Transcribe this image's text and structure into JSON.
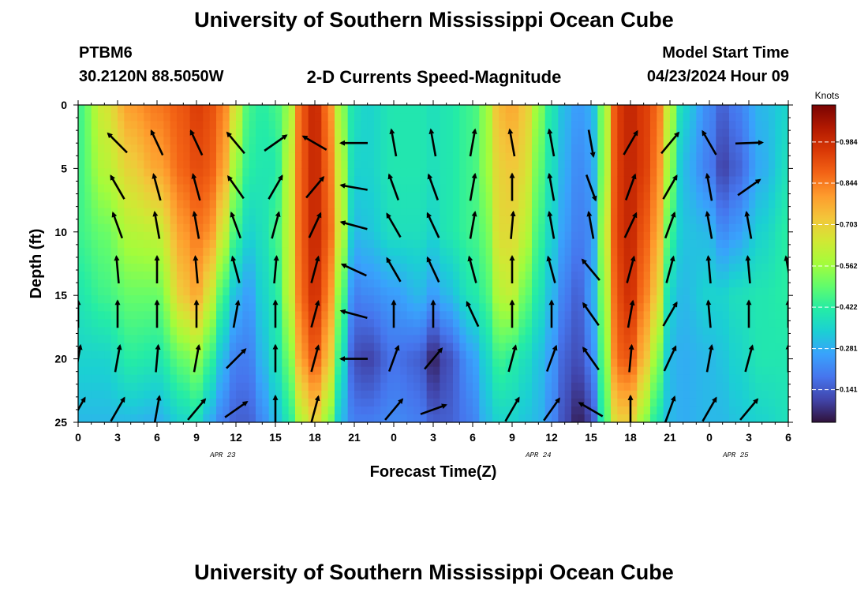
{
  "header": {
    "title": "University of Southern Mississippi Ocean Cube",
    "station": "PTBM6",
    "location": "30.2120N  88.5050W",
    "subtitle": "2-D Currents Speed-Magnitude",
    "model_start_label": "Model Start Time",
    "model_start_value": "04/23/2024 Hour 09"
  },
  "footer": {
    "title": "University of Southern Mississippi Ocean Cube"
  },
  "chart_data": {
    "type": "heatmap",
    "title": "2-D Currents Speed-Magnitude",
    "xlabel": "Forecast Time(Z)",
    "ylabel": "Depth (ft)",
    "x_range_hours": [
      0,
      54
    ],
    "y_range_ft": [
      0,
      25
    ],
    "x_tick_labels": [
      "0",
      "3",
      "6",
      "9",
      "12",
      "15",
      "18",
      "21",
      "0",
      "3",
      "6",
      "9",
      "12",
      "15",
      "18",
      "21",
      "0",
      "3",
      "6"
    ],
    "x_tick_hours": [
      0,
      3,
      6,
      9,
      12,
      15,
      18,
      21,
      24,
      27,
      30,
      33,
      36,
      39,
      42,
      45,
      48,
      51,
      54
    ],
    "y_tick_labels": [
      "0",
      "5",
      "10",
      "15",
      "20",
      "25"
    ],
    "y_tick_values": [
      0,
      5,
      10,
      15,
      20,
      25
    ],
    "date_labels": [
      {
        "text": "APR 23",
        "hour": 11
      },
      {
        "text": "APR 24",
        "hour": 35
      },
      {
        "text": "APR 25",
        "hour": 50
      }
    ],
    "colorbar": {
      "title": "Knots",
      "labels": [
        "0.984",
        "0.844",
        "0.703",
        "0.562",
        "0.422",
        "0.281",
        "0.141"
      ],
      "values": [
        0.984,
        0.844,
        0.703,
        0.562,
        0.422,
        0.281,
        0.141
      ],
      "range": [
        0.03,
        1.11
      ]
    },
    "colorscale": [
      "#30123b",
      "#4145ab",
      "#4675ed",
      "#39a2fc",
      "#1bcfd4",
      "#24eca6",
      "#61fc6c",
      "#a4fc3b",
      "#d1e834",
      "#f3c63a",
      "#fe9b2d",
      "#f36315",
      "#d93806",
      "#b11901",
      "#7a0403"
    ],
    "speed_profiles": [
      {
        "hour": 0,
        "v": [
          0.45,
          0.45,
          0.45,
          0.4,
          0.35,
          0.3
        ]
      },
      {
        "hour": 2,
        "v": [
          0.65,
          0.6,
          0.5,
          0.45,
          0.35,
          0.3
        ]
      },
      {
        "hour": 4,
        "v": [
          0.8,
          0.7,
          0.6,
          0.5,
          0.42,
          0.3
        ]
      },
      {
        "hour": 6,
        "v": [
          0.85,
          0.78,
          0.62,
          0.5,
          0.4,
          0.28
        ]
      },
      {
        "hour": 8,
        "v": [
          0.9,
          0.88,
          0.8,
          0.72,
          0.5,
          0.35
        ]
      },
      {
        "hour": 9,
        "v": [
          0.95,
          0.92,
          0.85,
          0.78,
          0.55,
          0.38
        ]
      },
      {
        "hour": 10,
        "v": [
          0.92,
          0.9,
          0.82,
          0.65,
          0.45,
          0.28
        ]
      },
      {
        "hour": 11,
        "v": [
          0.85,
          0.8,
          0.65,
          0.45,
          0.3,
          0.2
        ]
      },
      {
        "hour": 12,
        "v": [
          0.65,
          0.55,
          0.45,
          0.3,
          0.2,
          0.15
        ]
      },
      {
        "hour": 13,
        "v": [
          0.45,
          0.42,
          0.35,
          0.25,
          0.2,
          0.15
        ]
      },
      {
        "hour": 14,
        "v": [
          0.42,
          0.4,
          0.38,
          0.35,
          0.3,
          0.22
        ]
      },
      {
        "hour": 15,
        "v": [
          0.45,
          0.4,
          0.45,
          0.4,
          0.38,
          0.3
        ]
      },
      {
        "hour": 16,
        "v": [
          0.55,
          0.6,
          0.6,
          0.6,
          0.5,
          0.4
        ]
      },
      {
        "hour": 17,
        "v": [
          0.9,
          0.9,
          0.9,
          0.88,
          0.8,
          0.6
        ]
      },
      {
        "hour": 18,
        "v": [
          1.0,
          1.0,
          1.0,
          0.98,
          0.9,
          0.7
        ]
      },
      {
        "hour": 19,
        "v": [
          0.85,
          0.88,
          0.9,
          0.85,
          0.75,
          0.55
        ]
      },
      {
        "hour": 20,
        "v": [
          0.55,
          0.6,
          0.62,
          0.5,
          0.4,
          0.3
        ]
      },
      {
        "hour": 21,
        "v": [
          0.38,
          0.35,
          0.3,
          0.2,
          0.12,
          0.2
        ]
      },
      {
        "hour": 22,
        "v": [
          0.35,
          0.35,
          0.32,
          0.22,
          0.1,
          0.2
        ]
      },
      {
        "hour": 24,
        "v": [
          0.4,
          0.4,
          0.38,
          0.25,
          0.18,
          0.22
        ]
      },
      {
        "hour": 26,
        "v": [
          0.4,
          0.4,
          0.38,
          0.3,
          0.15,
          0.2
        ]
      },
      {
        "hour": 27,
        "v": [
          0.38,
          0.38,
          0.35,
          0.25,
          0.05,
          0.15
        ]
      },
      {
        "hour": 28,
        "v": [
          0.4,
          0.4,
          0.4,
          0.3,
          0.12,
          0.15
        ]
      },
      {
        "hour": 30,
        "v": [
          0.45,
          0.45,
          0.45,
          0.4,
          0.25,
          0.2
        ]
      },
      {
        "hour": 31,
        "v": [
          0.55,
          0.55,
          0.5,
          0.45,
          0.35,
          0.3
        ]
      },
      {
        "hour": 32,
        "v": [
          0.75,
          0.7,
          0.68,
          0.6,
          0.45,
          0.35
        ]
      },
      {
        "hour": 33,
        "v": [
          0.78,
          0.72,
          0.68,
          0.62,
          0.42,
          0.35
        ]
      },
      {
        "hour": 34,
        "v": [
          0.72,
          0.68,
          0.62,
          0.5,
          0.38,
          0.32
        ]
      },
      {
        "hour": 35,
        "v": [
          0.55,
          0.5,
          0.45,
          0.4,
          0.32,
          0.3
        ]
      },
      {
        "hour": 36,
        "v": [
          0.4,
          0.38,
          0.35,
          0.3,
          0.25,
          0.22
        ]
      },
      {
        "hour": 37,
        "v": [
          0.3,
          0.28,
          0.25,
          0.2,
          0.15,
          0.12
        ]
      },
      {
        "hour": 38,
        "v": [
          0.25,
          0.22,
          0.2,
          0.15,
          0.12,
          0.05
        ]
      },
      {
        "hour": 39,
        "v": [
          0.28,
          0.25,
          0.22,
          0.25,
          0.2,
          0.1
        ]
      },
      {
        "hour": 40,
        "v": [
          0.55,
          0.55,
          0.6,
          0.55,
          0.5,
          0.45
        ]
      },
      {
        "hour": 41,
        "v": [
          0.95,
          0.95,
          0.95,
          0.92,
          0.88,
          0.7
        ]
      },
      {
        "hour": 42,
        "v": [
          1.0,
          1.0,
          1.0,
          0.98,
          0.9,
          0.7
        ]
      },
      {
        "hour": 43,
        "v": [
          0.95,
          0.95,
          0.9,
          0.85,
          0.75,
          0.55
        ]
      },
      {
        "hour": 44,
        "v": [
          0.88,
          0.85,
          0.8,
          0.72,
          0.55,
          0.4
        ]
      },
      {
        "hour": 45,
        "v": [
          0.6,
          0.55,
          0.45,
          0.35,
          0.3,
          0.3
        ]
      },
      {
        "hour": 46,
        "v": [
          0.35,
          0.3,
          0.32,
          0.3,
          0.28,
          0.28
        ]
      },
      {
        "hour": 48,
        "v": [
          0.22,
          0.2,
          0.3,
          0.35,
          0.3,
          0.3
        ]
      },
      {
        "hour": 49,
        "v": [
          0.15,
          0.1,
          0.22,
          0.35,
          0.32,
          0.3
        ]
      },
      {
        "hour": 50,
        "v": [
          0.2,
          0.15,
          0.25,
          0.38,
          0.35,
          0.32
        ]
      },
      {
        "hour": 52,
        "v": [
          0.3,
          0.28,
          0.35,
          0.4,
          0.4,
          0.35
        ]
      },
      {
        "hour": 54,
        "v": [
          0.35,
          0.38,
          0.42,
          0.42,
          0.4,
          0.38
        ]
      }
    ],
    "arrow_rows_ft": [
      3,
      6.5,
      9.5,
      13,
      16.5,
      20,
      24
    ],
    "arrow_columns": [
      {
        "hour": 0,
        "dir_deg": [
          null,
          null,
          null,
          null,
          0,
          10,
          30
        ]
      },
      {
        "hour": 3,
        "dir_deg": [
          -45,
          -30,
          -20,
          -5,
          0,
          10,
          30
        ]
      },
      {
        "hour": 6,
        "dir_deg": [
          -25,
          -15,
          -10,
          0,
          0,
          5,
          10
        ]
      },
      {
        "hour": 9,
        "dir_deg": [
          -25,
          -15,
          -10,
          -5,
          0,
          10,
          40
        ]
      },
      {
        "hour": 12,
        "dir_deg": [
          -40,
          -35,
          -20,
          -15,
          10,
          45,
          55
        ]
      },
      {
        "hour": 15,
        "dir_deg": [
          55,
          30,
          15,
          5,
          0,
          0,
          0
        ]
      },
      {
        "hour": 18,
        "dir_deg": [
          -60,
          40,
          25,
          15,
          15,
          15,
          15
        ]
      },
      {
        "hour": 21,
        "dir_deg": [
          -90,
          -80,
          -75,
          -65,
          -75,
          -90,
          null
        ]
      },
      {
        "hour": 24,
        "dir_deg": [
          -10,
          -20,
          -30,
          -30,
          0,
          20,
          40
        ]
      },
      {
        "hour": 27,
        "dir_deg": [
          -10,
          -20,
          -25,
          -25,
          0,
          40,
          70
        ]
      },
      {
        "hour": 30,
        "dir_deg": [
          10,
          10,
          10,
          -15,
          -25,
          null,
          null
        ]
      },
      {
        "hour": 33,
        "dir_deg": [
          -10,
          0,
          5,
          0,
          0,
          15,
          30
        ]
      },
      {
        "hour": 36,
        "dir_deg": [
          -10,
          -10,
          -10,
          -15,
          0,
          20,
          35
        ]
      },
      {
        "hour": 39,
        "dir_deg": [
          170,
          160,
          -10,
          -40,
          -35,
          -35,
          -60
        ]
      },
      {
        "hour": 42,
        "dir_deg": [
          30,
          20,
          25,
          15,
          10,
          5,
          0
        ]
      },
      {
        "hour": 45,
        "dir_deg": [
          40,
          30,
          20,
          15,
          30,
          25,
          20
        ]
      },
      {
        "hour": 48,
        "dir_deg": [
          -30,
          -10,
          -10,
          -5,
          -5,
          10,
          30
        ]
      },
      {
        "hour": 51,
        "dir_deg": [
          88,
          55,
          -10,
          -5,
          0,
          15,
          40
        ]
      },
      {
        "hour": 54,
        "dir_deg": [
          null,
          null,
          null,
          -10,
          0,
          0,
          null
        ]
      }
    ]
  }
}
